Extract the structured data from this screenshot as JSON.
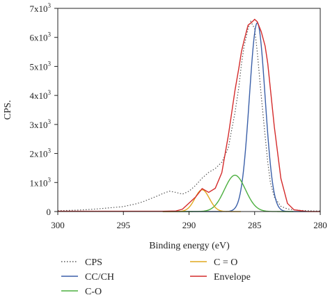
{
  "chart_data": {
    "type": "line",
    "xlabel": "Binding energy (eV)",
    "ylabel": "CPS.",
    "xlim": [
      300,
      280
    ],
    "ylim": [
      0,
      7000
    ],
    "x_reversed": true,
    "x_ticks": [
      300,
      295,
      290,
      285,
      280
    ],
    "x_tick_labels": [
      "300",
      "295",
      "290",
      "285",
      "280"
    ],
    "y_ticks": [
      0,
      1000,
      2000,
      3000,
      4000,
      5000,
      6000,
      7000
    ],
    "y_tick_labels": [
      {
        "base": "0",
        "exp": ""
      },
      {
        "base": "1x10",
        "exp": "3"
      },
      {
        "base": "2x10",
        "exp": "3"
      },
      {
        "base": "3x10",
        "exp": "3"
      },
      {
        "base": "4x10",
        "exp": "3"
      },
      {
        "base": "5x10",
        "exp": "3"
      },
      {
        "base": "6x10",
        "exp": "3"
      },
      {
        "base": "7x10",
        "exp": "3"
      }
    ],
    "grid": false,
    "legend_position": "bottom",
    "series": [
      {
        "name": "CPS",
        "style": "dotted",
        "color": "#555555",
        "x": [
          300,
          299,
          298,
          297,
          296,
          295,
          294.5,
          294,
          293.5,
          293,
          292.5,
          292,
          291.5,
          291,
          290.5,
          290,
          289.5,
          289,
          288.5,
          288,
          287.5,
          287,
          286.8,
          286.5,
          286.2,
          286,
          285.8,
          285.5,
          285.3,
          285,
          284.8,
          284.5,
          284.2,
          284,
          283.8,
          283.5,
          283,
          282.5,
          282,
          281.5,
          281,
          280.5,
          280
        ],
        "y": [
          30,
          40,
          60,
          90,
          130,
          170,
          220,
          270,
          340,
          430,
          520,
          620,
          700,
          660,
          600,
          700,
          900,
          1150,
          1350,
          1480,
          1700,
          2200,
          2700,
          3400,
          4300,
          5100,
          5700,
          6300,
          6550,
          6300,
          5500,
          4000,
          2600,
          1700,
          1000,
          500,
          180,
          90,
          60,
          40,
          30,
          20,
          20
        ]
      },
      {
        "name": "CC/CH",
        "style": "solid",
        "color": "#3a5fa8",
        "peak": {
          "center": 284.8,
          "amplitude": 6500,
          "sigma": 0.6
        },
        "x": [
          292,
          291,
          290,
          289,
          288.5,
          288,
          287.5,
          287,
          286.5,
          286,
          285.5,
          285.2,
          285,
          284.8,
          284.5,
          284,
          283.5,
          283,
          282.5,
          282,
          281
        ],
        "y": [
          0,
          0,
          5,
          30,
          100,
          290,
          720,
          1580,
          2910,
          4500,
          5840,
          6330,
          6470,
          6500,
          6390,
          5080,
          2910,
          1140,
          280,
          60,
          0
        ]
      },
      {
        "name": "C-O",
        "style": "solid",
        "color": "#4caf3f",
        "peak": {
          "center": 286.5,
          "amplitude": 1250,
          "sigma": 0.8
        },
        "x": [
          292,
          290,
          289,
          288.5,
          288,
          287.5,
          287,
          286.5,
          286,
          285.5,
          285,
          284.5,
          284,
          283,
          282
        ],
        "y": [
          0,
          10,
          90,
          190,
          370,
          570,
          1040,
          1250,
          1040,
          570,
          200,
          50,
          10,
          0,
          0
        ]
      },
      {
        "name": "C = O",
        "style": "solid",
        "color": "#e0a71e",
        "peak": {
          "center": 289,
          "amplitude": 750,
          "sigma": 0.55
        },
        "x": [
          292,
          291,
          290.5,
          290,
          289.5,
          289,
          288.5,
          288,
          287.5,
          287,
          286.5,
          286
        ],
        "y": [
          0,
          10,
          40,
          140,
          370,
          750,
          370,
          140,
          40,
          10,
          0,
          0
        ]
      },
      {
        "name": "Envelope",
        "style": "solid",
        "color": "#d42a2a",
        "x": [
          300,
          296,
          293,
          292,
          291,
          290.5,
          290,
          289.5,
          289,
          288.5,
          288,
          287.5,
          287,
          286.5,
          286.2,
          286,
          285.8,
          285.5,
          285.2,
          285,
          284.8,
          284.5,
          284.2,
          284,
          283.5,
          283,
          282.5,
          282,
          281,
          280
        ],
        "y": [
          10,
          10,
          10,
          10,
          20,
          80,
          290,
          500,
          790,
          660,
          800,
          1340,
          2630,
          4170,
          4950,
          5520,
          5900,
          6420,
          6530,
          6620,
          6540,
          6200,
          5700,
          5100,
          2920,
          1140,
          280,
          60,
          0,
          0
        ]
      }
    ]
  }
}
